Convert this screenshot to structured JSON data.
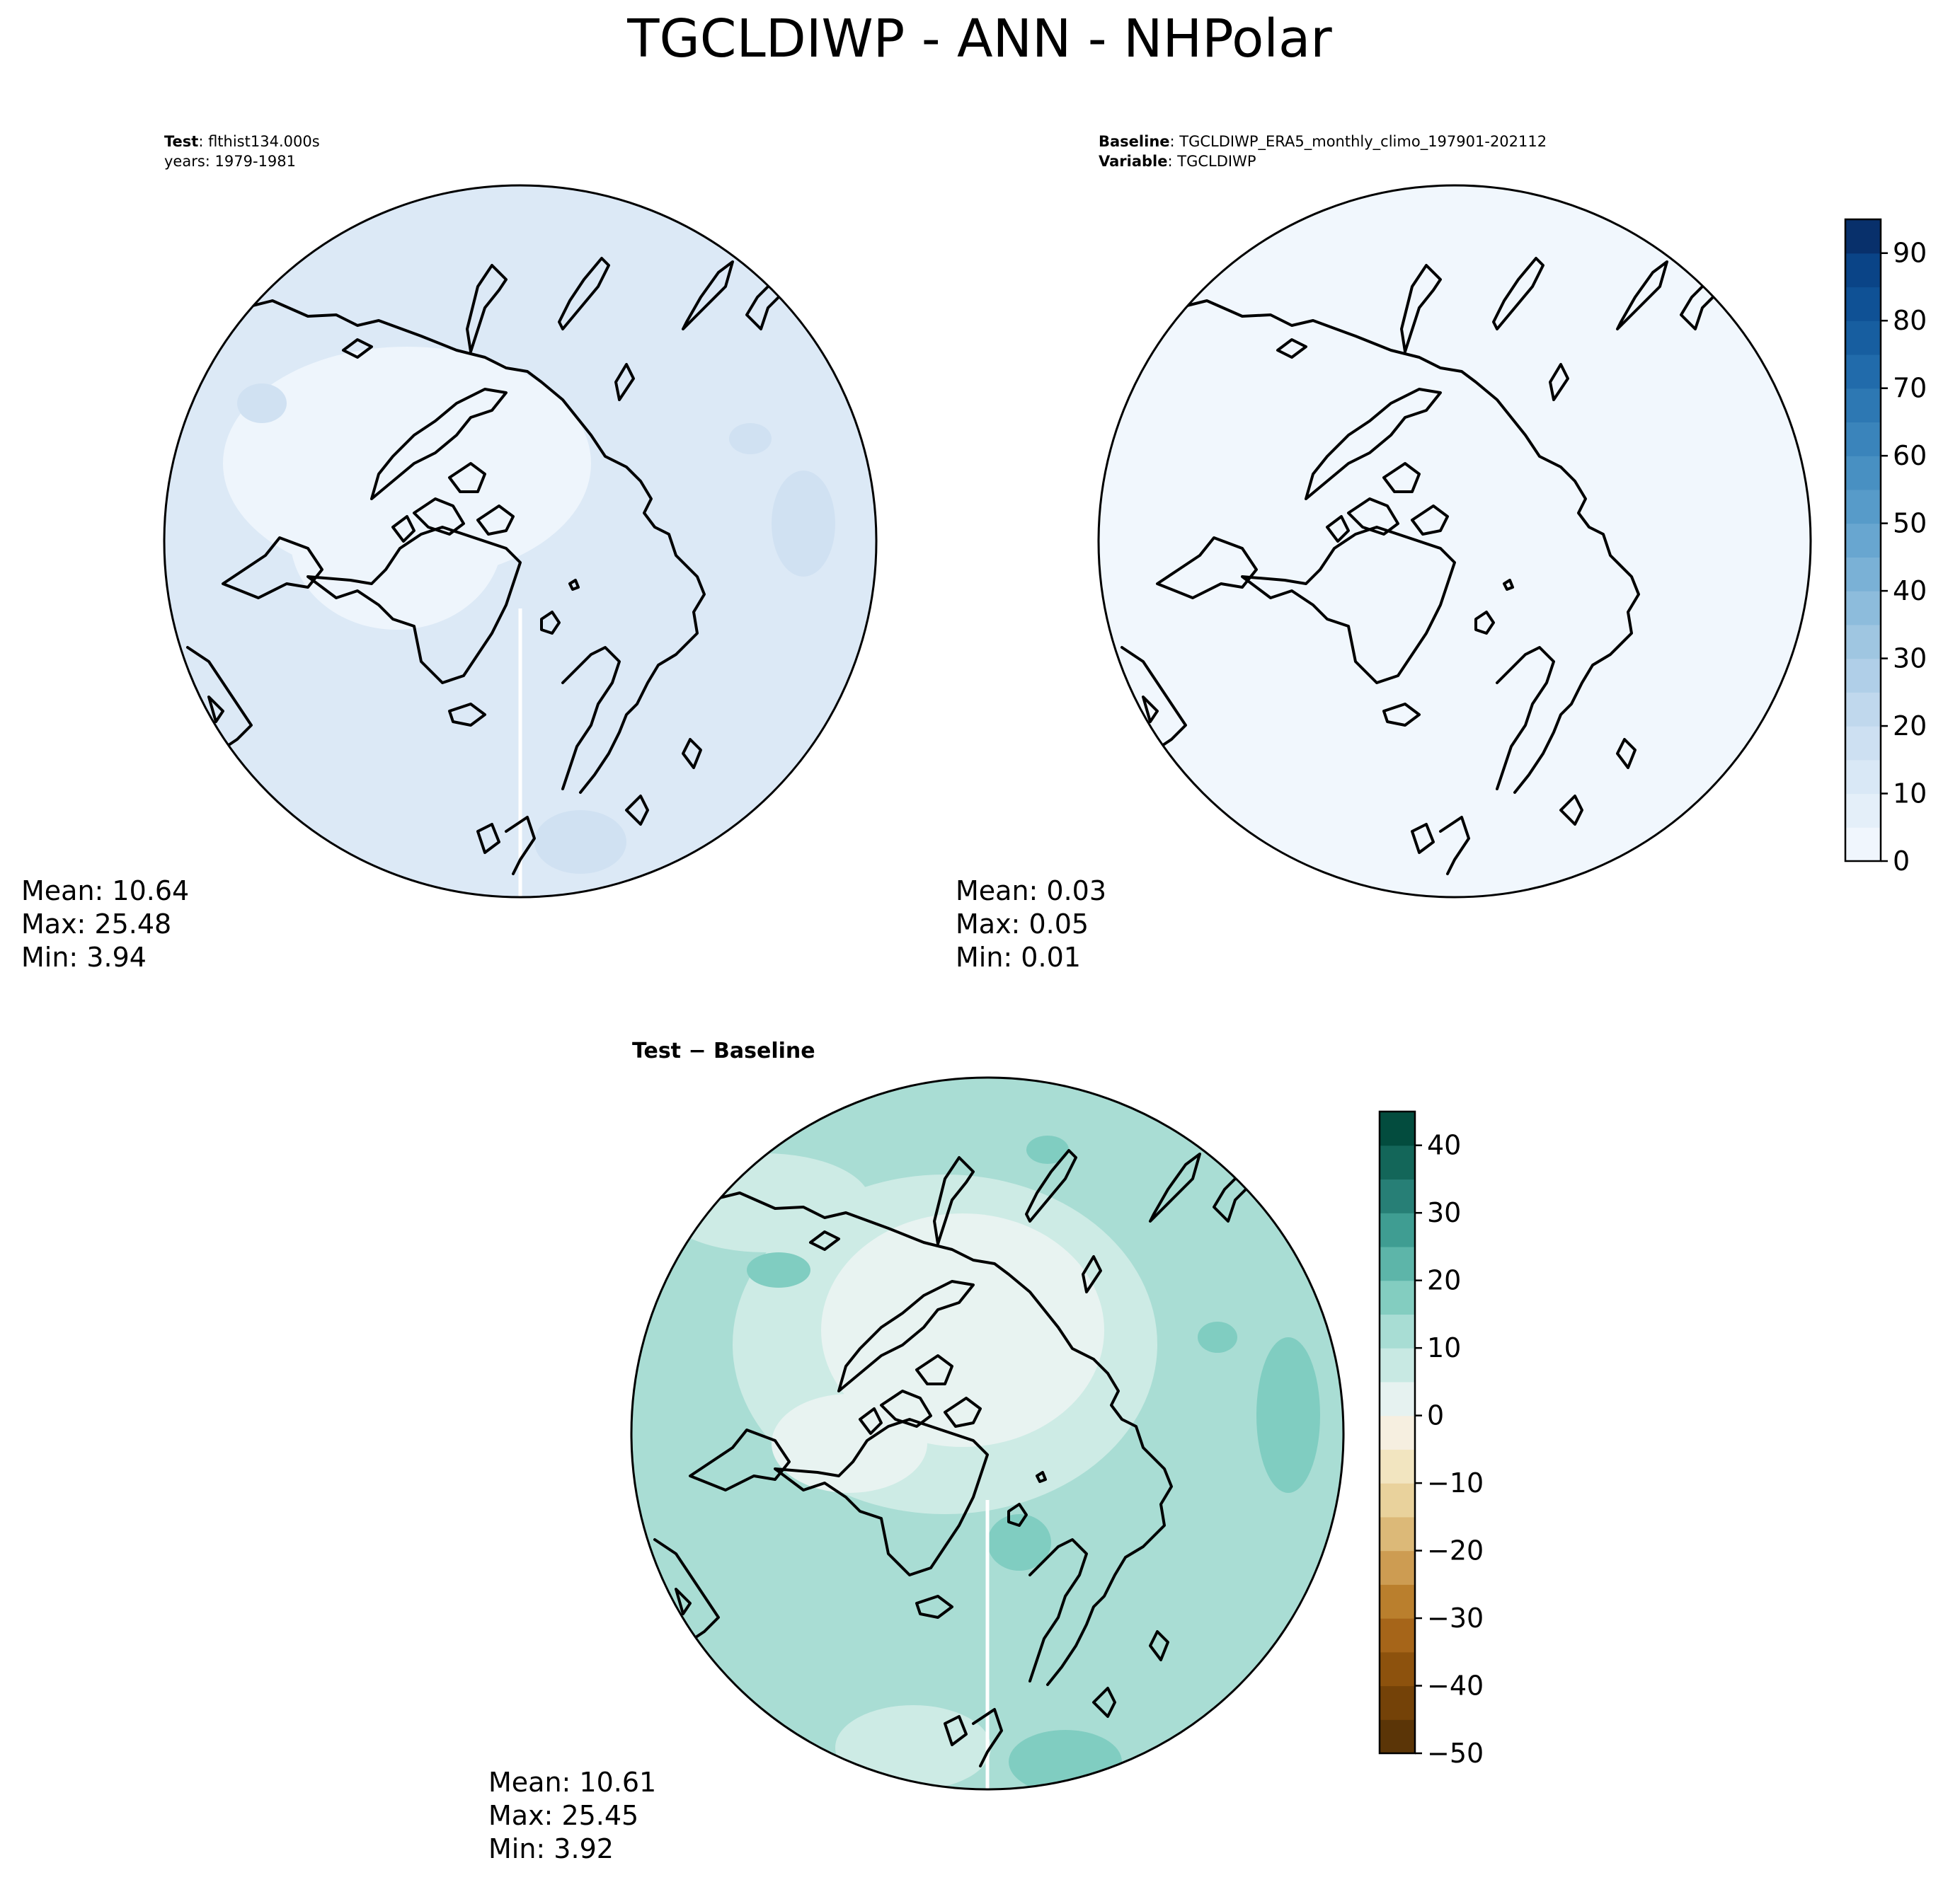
{
  "suptitle": "TGCLDIWP - ANN - NHPolar",
  "panels": [
    {
      "id": "test",
      "header": [
        {
          "bold": "Test",
          "text": ": flthist134.000s"
        },
        {
          "bold": "",
          "text": "years: 1979-1981"
        }
      ],
      "stats": {
        "mean": "Mean: 10.64",
        "max": "Max: 25.48",
        "min": "Min:  3.94"
      },
      "fill_color": "#dce9f6",
      "patch_color": "#d0e1f2",
      "core_color": "#eef5fc"
    },
    {
      "id": "baseline",
      "header": [
        {
          "bold": "Baseline",
          "text": ": TGCLDIWP_ERA5_monthly_climo_197901-202112"
        },
        {
          "bold": "Variable",
          "text": ": TGCLDIWP"
        }
      ],
      "stats": {
        "mean": "Mean:  0.03",
        "max": "Max:  0.05",
        "min": "Min:  0.01"
      },
      "fill_color": "#f1f7fd"
    },
    {
      "id": "diff",
      "title": "Test − Baseline",
      "stats": {
        "mean": "Mean: 10.61",
        "max": "Max: 25.45",
        "min": "Min:  3.92"
      },
      "fill_color": "#a9ddd4",
      "patch_color": "#80cdc1",
      "core_color": "#e8f3f1",
      "ring_color": "#cdebe5"
    }
  ],
  "chart_data": [
    {
      "type": "heatmap",
      "projection": "north polar stereographic",
      "panel": "Test",
      "case": "flthist134.000s",
      "years": "1979-1981",
      "mean": 10.64,
      "max": 25.48,
      "min": 3.94
    },
    {
      "type": "heatmap",
      "projection": "north polar stereographic",
      "panel": "Baseline",
      "case": "TGCLDIWP_ERA5_monthly_climo_197901-202112",
      "variable": "TGCLDIWP",
      "mean": 0.03,
      "max": 0.05,
      "min": 0.01,
      "colorbar": {
        "cmap": "Blues",
        "range": [
          0,
          95
        ],
        "levels": [
          0,
          5,
          10,
          15,
          20,
          25,
          30,
          35,
          40,
          45,
          50,
          55,
          60,
          65,
          70,
          75,
          80,
          85,
          90,
          95
        ],
        "ticks": [
          0,
          10,
          20,
          30,
          40,
          50,
          60,
          70,
          80,
          90
        ],
        "tick_labels": [
          "0",
          "10",
          "20",
          "30",
          "40",
          "50",
          "60",
          "70",
          "80",
          "90"
        ],
        "colors": [
          "#f0f6fd",
          "#e4eff9",
          "#d9e8f6",
          "#cde0f2",
          "#c0d8ed",
          "#b0cfe8",
          "#9fc6e1",
          "#8dbcdc",
          "#7ab1d6",
          "#68a6d0",
          "#579bc9",
          "#4890c2",
          "#3a84bb",
          "#2d78b3",
          "#216bab",
          "#175ea0",
          "#0f5195",
          "#0a4487",
          "#08306b"
        ]
      }
    },
    {
      "type": "heatmap",
      "projection": "north polar stereographic",
      "panel": "Test − Baseline",
      "mean": 10.61,
      "max": 25.45,
      "min": 3.92,
      "colorbar": {
        "cmap": "BrBG",
        "range": [
          -50,
          45
        ],
        "levels": [
          -50,
          -45,
          -40,
          -35,
          -30,
          -25,
          -20,
          -15,
          -10,
          -5,
          0,
          5,
          10,
          15,
          20,
          25,
          30,
          35,
          40,
          45
        ],
        "ticks": [
          -50,
          -40,
          -30,
          -20,
          -10,
          0,
          10,
          20,
          30,
          40
        ],
        "tick_labels": [
          "−50",
          "−40",
          "−30",
          "−20",
          "−10",
          "0",
          "10",
          "20",
          "30",
          "40"
        ],
        "colors": [
          "#5b3507",
          "#744208",
          "#8d520d",
          "#a66519",
          "#ba7f2d",
          "#cd9c52",
          "#dcb978",
          "#e9d29c",
          "#f2e5c0",
          "#f6efe0",
          "#e6f2f0",
          "#c8e9e3",
          "#a8ddd4",
          "#83cdc0",
          "#5db5a9",
          "#3f9d92",
          "#277f76",
          "#136659",
          "#034c3e"
        ]
      }
    }
  ]
}
